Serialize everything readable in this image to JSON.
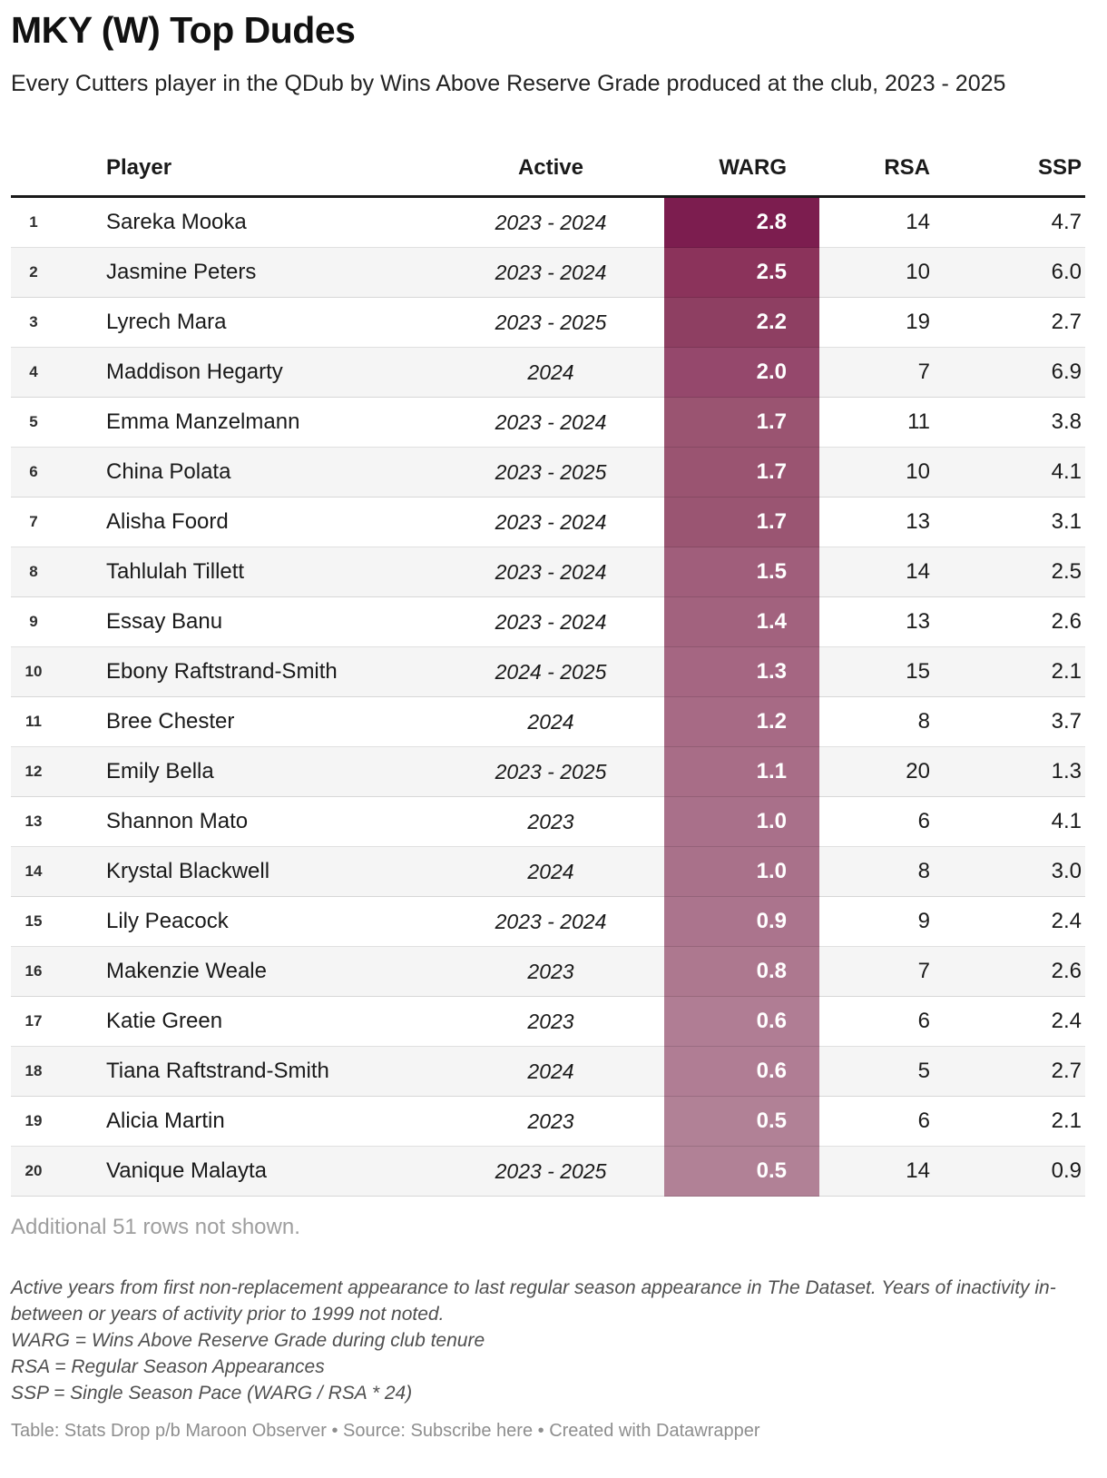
{
  "header": {
    "title": "MKY (W) Top Dudes",
    "subtitle": "Every Cutters player in the QDub by Wins Above Reserve Grade produced at the club, 2023 - 2025"
  },
  "chart_data": {
    "type": "table",
    "title": "MKY (W) Top Dudes",
    "columns": [
      "",
      "Player",
      "Active",
      "WARG",
      "RSA",
      "SSP"
    ],
    "warg_scale": {
      "min": 0.5,
      "max": 2.8,
      "color_max": "#7c1d4f",
      "color_min": "#b18196"
    },
    "rows": [
      {
        "rank": "1",
        "player": "Sareka Mooka",
        "active": "2023 - 2024",
        "warg": "2.8",
        "rsa": "14",
        "ssp": "4.7",
        "warg_color": "#7c1d4f"
      },
      {
        "rank": "2",
        "player": "Jasmine Peters",
        "active": "2023 - 2024",
        "warg": "2.5",
        "rsa": "10",
        "ssp": "6.0",
        "warg_color": "#8b335b"
      },
      {
        "rank": "3",
        "player": "Lyrech Mara",
        "active": "2023 - 2025",
        "warg": "2.2",
        "rsa": "19",
        "ssp": "2.7",
        "warg_color": "#8e3f62"
      },
      {
        "rank": "4",
        "player": "Maddison Hegarty",
        "active": "2024",
        "warg": "2.0",
        "rsa": "7",
        "ssp": "6.9",
        "warg_color": "#95486c"
      },
      {
        "rank": "5",
        "player": "Emma Manzelmann",
        "active": "2023 - 2024",
        "warg": "1.7",
        "rsa": "11",
        "ssp": "3.8",
        "warg_color": "#9a5471"
      },
      {
        "rank": "6",
        "player": "China Polata",
        "active": "2023 - 2025",
        "warg": "1.7",
        "rsa": "10",
        "ssp": "4.1",
        "warg_color": "#9a5471"
      },
      {
        "rank": "7",
        "player": "Alisha Foord",
        "active": "2023 - 2024",
        "warg": "1.7",
        "rsa": "13",
        "ssp": "3.1",
        "warg_color": "#9a5572"
      },
      {
        "rank": "8",
        "player": "Tahlulah Tillett",
        "active": "2023 - 2024",
        "warg": "1.5",
        "rsa": "14",
        "ssp": "2.5",
        "warg_color": "#a05e7b"
      },
      {
        "rank": "9",
        "player": "Essay Banu",
        "active": "2023 - 2024",
        "warg": "1.4",
        "rsa": "13",
        "ssp": "2.6",
        "warg_color": "#a2627e"
      },
      {
        "rank": "10",
        "player": "Ebony Raftstrand-Smith",
        "active": "2024 - 2025",
        "warg": "1.3",
        "rsa": "15",
        "ssp": "2.1",
        "warg_color": "#a56682"
      },
      {
        "rank": "11",
        "player": "Bree Chester",
        "active": "2024",
        "warg": "1.2",
        "rsa": "8",
        "ssp": "3.7",
        "warg_color": "#a76a85"
      },
      {
        "rank": "12",
        "player": "Emily Bella",
        "active": "2023 - 2025",
        "warg": "1.1",
        "rsa": "20",
        "ssp": "1.3",
        "warg_color": "#a86d87"
      },
      {
        "rank": "13",
        "player": "Shannon Mato",
        "active": "2023",
        "warg": "1.0",
        "rsa": "6",
        "ssp": "4.1",
        "warg_color": "#a9708a"
      },
      {
        "rank": "14",
        "player": "Krystal Blackwell",
        "active": "2024",
        "warg": "1.0",
        "rsa": "8",
        "ssp": "3.0",
        "warg_color": "#a9718a"
      },
      {
        "rank": "15",
        "player": "Lily Peacock",
        "active": "2023 - 2024",
        "warg": "0.9",
        "rsa": "9",
        "ssp": "2.4",
        "warg_color": "#ab748d"
      },
      {
        "rank": "16",
        "player": "Makenzie Weale",
        "active": "2023",
        "warg": "0.8",
        "rsa": "7",
        "ssp": "2.6",
        "warg_color": "#ad788f"
      },
      {
        "rank": "17",
        "player": "Katie Green",
        "active": "2023",
        "warg": "0.6",
        "rsa": "6",
        "ssp": "2.4",
        "warg_color": "#b07d94"
      },
      {
        "rank": "18",
        "player": "Tiana Raftstrand-Smith",
        "active": "2024",
        "warg": "0.6",
        "rsa": "5",
        "ssp": "2.7",
        "warg_color": "#b07d94"
      },
      {
        "rank": "19",
        "player": "Alicia Martin",
        "active": "2023",
        "warg": "0.5",
        "rsa": "6",
        "ssp": "2.1",
        "warg_color": "#b18196"
      },
      {
        "rank": "20",
        "player": "Vanique Malayta",
        "active": "2023 - 2025",
        "warg": "0.5",
        "rsa": "14",
        "ssp": "0.9",
        "warg_color": "#b18196"
      }
    ]
  },
  "notes": {
    "additional": "Additional 51 rows not shown.",
    "footnote_active": "Active years from first non-replacement appearance to last regular season appearance in The Dataset. Years of inactivity in-between or years of activity prior to 1999 not noted.",
    "footnote_warg": "WARG = Wins Above Reserve Grade during club tenure",
    "footnote_rsa": "RSA = Regular Season Appearances",
    "footnote_ssp": "SSP = Single Season Pace (WARG / RSA * 24)"
  },
  "footer": {
    "table_credit": "Table: Stats Drop p/b Maroon Observer • Source: ",
    "source_link": "Subscribe here",
    "created_with": " • Created with Datawrapper"
  },
  "colors": {
    "header_rule": "#1a1a1a",
    "even_row_bg": "#f5f5f5",
    "warg_text": "#ffffff",
    "muted_text": "#9e9e9e",
    "footnote_text": "#4f4f4f",
    "attribution_text": "#8e8e8e"
  }
}
